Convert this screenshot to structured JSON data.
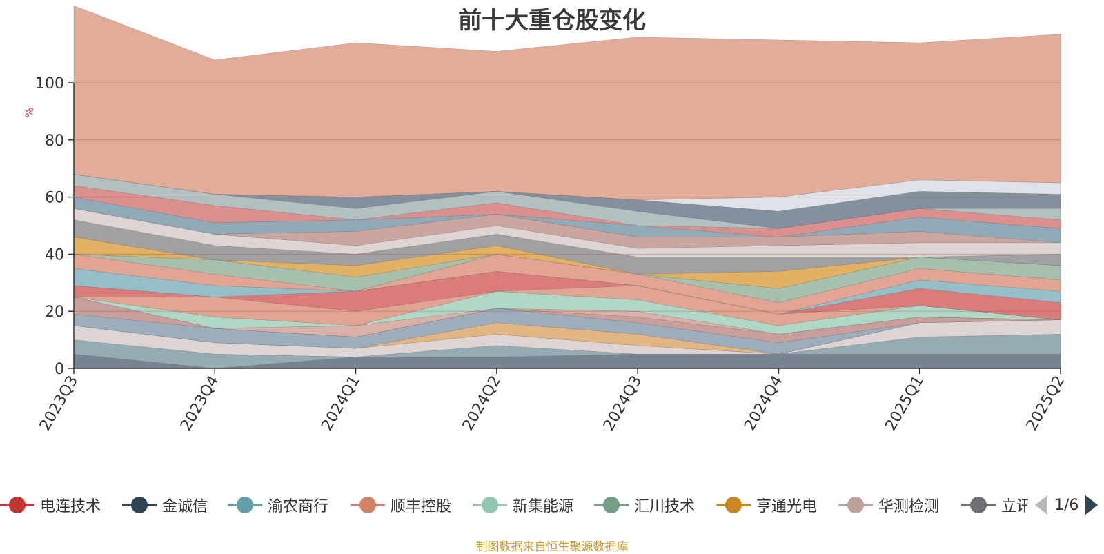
{
  "chart_data": {
    "type": "area",
    "title": "前十大重仓股变化",
    "ylabel": "%",
    "ylim": [
      0,
      100
    ],
    "yticks": [
      0,
      20,
      40,
      60,
      80,
      100
    ],
    "grid": true,
    "x": [
      "2023Q3",
      "2023Q4",
      "2024Q1",
      "2024Q2",
      "2024Q3",
      "2024Q4",
      "2025Q1",
      "2025Q2"
    ],
    "series": [
      {
        "values": [
          5,
          0,
          4,
          4,
          5,
          5,
          5,
          5
        ],
        "color": "#6f7d8b"
      },
      {
        "values": [
          5,
          5,
          0,
          4,
          0,
          0,
          6,
          7
        ],
        "color": "#8fa8b0"
      },
      {
        "values": [
          5,
          4,
          3,
          4,
          3,
          0,
          5,
          5
        ],
        "color": "#dcd2d2"
      },
      {
        "values": [
          0,
          0,
          0,
          4,
          4,
          0,
          0,
          0
        ],
        "color": "#e2b27a"
      },
      {
        "values": [
          4,
          5,
          4,
          5,
          4,
          4,
          0,
          0
        ],
        "color": "#97aab8"
      },
      {
        "values": [
          6,
          0,
          0,
          0,
          2,
          3,
          2,
          0
        ],
        "color": "#c79996"
      },
      {
        "values": [
          0,
          0,
          4,
          0,
          2,
          0,
          0,
          0
        ],
        "color": "#d8ada3"
      },
      {
        "values": [
          0,
          4,
          0,
          6,
          4,
          3,
          4,
          0
        ],
        "color": "#acd6c3"
      },
      {
        "values": [
          0,
          7,
          5,
          0,
          5,
          4,
          0,
          0
        ],
        "color": "#e2a08d"
      },
      {
        "values": [
          4,
          0,
          7,
          7,
          0,
          0,
          6,
          6
        ],
        "color": "#d97473"
      },
      {
        "values": [
          6,
          4,
          0,
          0,
          0,
          0,
          3,
          4
        ],
        "color": "#8fbcc4"
      },
      {
        "values": [
          5,
          4,
          0,
          6,
          4,
          4,
          4,
          4
        ],
        "color": "#e2a08d"
      },
      {
        "values": [
          0,
          5,
          5,
          0,
          0,
          5,
          4,
          5
        ],
        "color": "#a1bda9"
      },
      {
        "values": [
          6,
          0,
          4,
          3,
          0,
          6,
          0,
          0
        ],
        "color": "#e0ad5a"
      },
      {
        "values": [
          6,
          5,
          4,
          4,
          6,
          5,
          0,
          4
        ],
        "color": "#9c9c9f"
      },
      {
        "values": [
          4,
          4,
          3,
          3,
          3,
          4,
          5,
          4
        ],
        "color": "#dcd2d2"
      },
      {
        "values": [
          0,
          0,
          5,
          4,
          4,
          3,
          4,
          0
        ],
        "color": "#c8a19c"
      },
      {
        "values": [
          4,
          4,
          4,
          0,
          4,
          0,
          5,
          5
        ],
        "color": "#8aa5b3"
      },
      {
        "values": [
          4,
          6,
          0,
          4,
          0,
          3,
          3,
          3
        ],
        "color": "#d98a87"
      },
      {
        "values": [
          4,
          4,
          4,
          4,
          5,
          0,
          0,
          4
        ],
        "color": "#aebdbe"
      },
      {
        "values": [
          0,
          0,
          4,
          0,
          4,
          6,
          6,
          5
        ],
        "color": "#7c8a98"
      },
      {
        "values": [
          0,
          0,
          0,
          0,
          0,
          5,
          4,
          4
        ],
        "color": "#dde2e8"
      },
      {
        "values": [
          59,
          47,
          54,
          49,
          57,
          55,
          48,
          52
        ],
        "color": "#e0a892"
      }
    ]
  },
  "legend": {
    "items": [
      {
        "label": "电连技术",
        "color": "#c23531"
      },
      {
        "label": "金诚信",
        "color": "#2f4554"
      },
      {
        "label": "渝农商行",
        "color": "#61a0a8"
      },
      {
        "label": "顺丰控股",
        "color": "#d48265"
      },
      {
        "label": "新集能源",
        "color": "#91c7ae"
      },
      {
        "label": "汇川技术",
        "color": "#749f83"
      },
      {
        "label": "亨通光电",
        "color": "#ca8622"
      },
      {
        "label": "华测检测",
        "color": "#bda29a"
      },
      {
        "label": "立讯精密",
        "color": "#6e7074"
      }
    ],
    "page": "1/6"
  },
  "source_note": "制图数据来自恒生聚源数据库"
}
